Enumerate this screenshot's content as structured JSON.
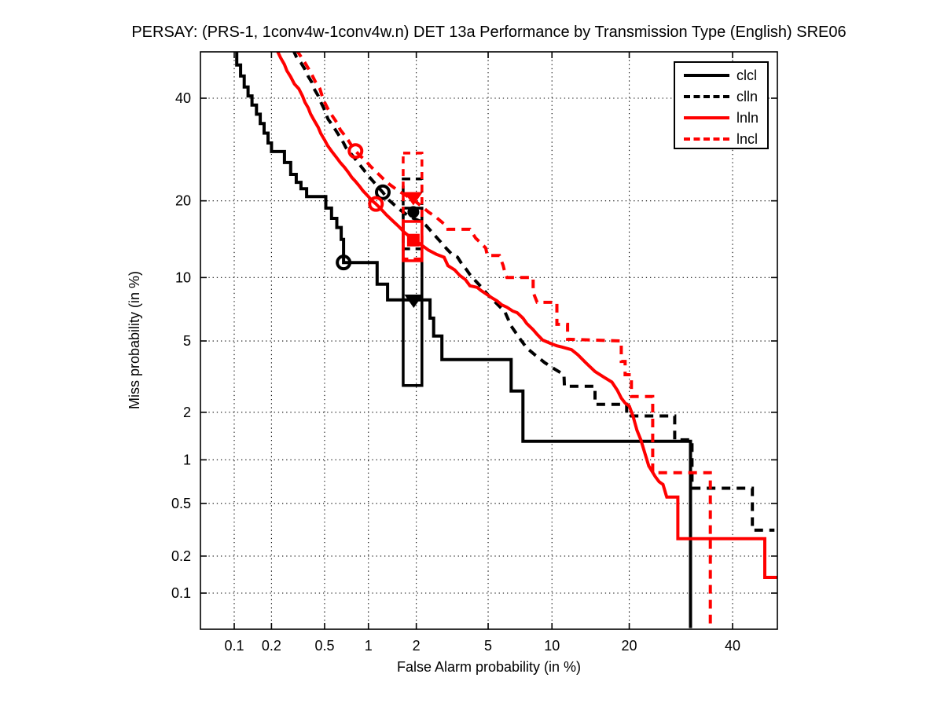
{
  "figure": {
    "background": "#ffffff",
    "accent_colors": {
      "black": "#000000",
      "red": "#ff0000"
    }
  },
  "legend": {
    "position": "top-right",
    "items": [
      {
        "label": "clcl",
        "color": "#000000",
        "style": "solid"
      },
      {
        "label": "clln",
        "color": "#000000",
        "style": "dashed"
      },
      {
        "label": "lnln",
        "color": "#ff0000",
        "style": "solid"
      },
      {
        "label": "lncl",
        "color": "#ff0000",
        "style": "dashed"
      }
    ]
  },
  "chart_data": {
    "type": "line",
    "subtype": "DET-curve (normal deviate scale on both axes)",
    "title": "PERSAY: (PRS-1, 1conv4w-1conv4w.n) DET 13a Performance by Transmission Type (English) SRE06",
    "xlabel": "False Alarm probability (in %)",
    "ylabel": "Miss probability (in %)",
    "xlim": [
      0.05,
      50
    ],
    "ylim": [
      0.05,
      50
    ],
    "x_tick_labels": [
      "0.1",
      "0.2",
      "0.5",
      "1",
      "2",
      "5",
      "10",
      "20",
      "40"
    ],
    "y_tick_labels": [
      "0.1",
      "0.2",
      "0.5",
      "1",
      "2",
      "5",
      "10",
      "20",
      "40"
    ],
    "x_ticks": [
      0.1,
      0.2,
      0.5,
      1,
      2,
      5,
      10,
      20,
      40
    ],
    "y_ticks": [
      0.1,
      0.2,
      0.5,
      1,
      2,
      5,
      10,
      20,
      40
    ],
    "grid": true,
    "series": [
      {
        "name": "clcl",
        "color": "#000000",
        "style": "solid",
        "min_dcf_point": [
          0.68,
          11.6
        ],
        "act_dcf_point": [
          1.93,
          7.85
        ],
        "act_marker": "triangle-down",
        "box": {
          "fa": [
            1.665,
            2.16
          ],
          "miss": [
            2.87,
            18.85
          ],
          "style": "solid"
        },
        "points": [
          [
            0.105,
            51
          ],
          [
            0.105,
            47.5
          ],
          [
            0.113,
            47.5
          ],
          [
            0.113,
            45
          ],
          [
            0.121,
            45
          ],
          [
            0.121,
            42.5
          ],
          [
            0.13,
            42.5
          ],
          [
            0.13,
            40.5
          ],
          [
            0.14,
            40.5
          ],
          [
            0.14,
            38.5
          ],
          [
            0.152,
            38.5
          ],
          [
            0.152,
            36.5
          ],
          [
            0.163,
            36.5
          ],
          [
            0.163,
            34.5
          ],
          [
            0.175,
            34.5
          ],
          [
            0.175,
            32.5
          ],
          [
            0.188,
            32.5
          ],
          [
            0.188,
            30.5
          ],
          [
            0.2,
            30.5
          ],
          [
            0.2,
            28.8
          ],
          [
            0.252,
            28.8
          ],
          [
            0.252,
            26.7
          ],
          [
            0.281,
            26.7
          ],
          [
            0.281,
            24.5
          ],
          [
            0.31,
            24.5
          ],
          [
            0.31,
            23.1
          ],
          [
            0.336,
            23.1
          ],
          [
            0.336,
            22
          ],
          [
            0.37,
            22
          ],
          [
            0.37,
            20.7
          ],
          [
            0.51,
            20.7
          ],
          [
            0.51,
            18.85
          ],
          [
            0.56,
            18.85
          ],
          [
            0.56,
            17.3
          ],
          [
            0.61,
            17.3
          ],
          [
            0.61,
            16
          ],
          [
            0.655,
            16
          ],
          [
            0.655,
            14.4
          ],
          [
            0.68,
            14.4
          ],
          [
            0.68,
            11.6
          ],
          [
            1.14,
            11.6
          ],
          [
            1.14,
            9.35
          ],
          [
            1.33,
            9.35
          ],
          [
            1.33,
            7.93
          ],
          [
            2.41,
            7.93
          ],
          [
            2.41,
            6.5
          ],
          [
            2.53,
            6.5
          ],
          [
            2.53,
            5.3
          ],
          [
            2.82,
            5.3
          ],
          [
            2.82,
            3.99
          ],
          [
            6.5,
            3.99
          ],
          [
            6.5,
            2.67
          ],
          [
            7.4,
            2.67
          ],
          [
            7.4,
            1.32
          ],
          [
            31.1,
            1.32
          ],
          [
            31.1,
            0.05
          ]
        ]
      },
      {
        "name": "clln",
        "color": "#000000",
        "style": "dashed",
        "min_dcf_point": [
          1.24,
          21.4
        ],
        "act_dcf_point": [
          1.92,
          18.25
        ],
        "act_marker": "filled-circle",
        "box": {
          "fa": [
            1.665,
            2.16
          ],
          "miss": [
            13.2,
            23.7
          ],
          "style": "dashed"
        },
        "points": [
          [
            0.293,
            51
          ],
          [
            0.31,
            49.4
          ],
          [
            0.336,
            48
          ],
          [
            0.36,
            46.5
          ],
          [
            0.38,
            44.9
          ],
          [
            0.405,
            43.5
          ],
          [
            0.42,
            42.1
          ],
          [
            0.45,
            40.5
          ],
          [
            0.47,
            39.1
          ],
          [
            0.494,
            37.8
          ],
          [
            0.51,
            36.6
          ],
          [
            0.53,
            35.4
          ],
          [
            0.57,
            34.1
          ],
          [
            0.605,
            32.9
          ],
          [
            0.645,
            31.6
          ],
          [
            0.68,
            30.5
          ],
          [
            0.705,
            29.6
          ],
          [
            0.8,
            27.7
          ],
          [
            0.88,
            26.2
          ],
          [
            0.965,
            24.8
          ],
          [
            1.04,
            23.7
          ],
          [
            1.12,
            22.7
          ],
          [
            1.24,
            21.4
          ],
          [
            1.36,
            20.1
          ],
          [
            1.49,
            19.2
          ],
          [
            1.61,
            18.5
          ],
          [
            1.76,
            17.8
          ],
          [
            1.92,
            17.3
          ],
          [
            2.11,
            16.9
          ],
          [
            2.28,
            16.3
          ],
          [
            2.43,
            15.55
          ],
          [
            2.62,
            14.7
          ],
          [
            2.82,
            13.9
          ],
          [
            3.0,
            13.2
          ],
          [
            3.21,
            12.55
          ],
          [
            3.45,
            12.2
          ],
          [
            3.66,
            11.35
          ],
          [
            3.84,
            10.85
          ],
          [
            4.02,
            10.3
          ],
          [
            4.31,
            9.65
          ],
          [
            4.6,
            9.1
          ],
          [
            4.86,
            8.6
          ],
          [
            5.1,
            8.2
          ],
          [
            5.35,
            7.85
          ],
          [
            5.7,
            7.4
          ],
          [
            6.06,
            6.98
          ],
          [
            6.5,
            5.95
          ],
          [
            7.1,
            5.2
          ],
          [
            7.7,
            4.6
          ],
          [
            8.4,
            4.23
          ],
          [
            9.3,
            3.84
          ],
          [
            10.25,
            3.55
          ],
          [
            11.25,
            3.3
          ],
          [
            11.3,
            2.84
          ],
          [
            15.0,
            2.84
          ],
          [
            15.0,
            2.23
          ],
          [
            19.6,
            2.23
          ],
          [
            19.6,
            1.9
          ],
          [
            28.0,
            1.9
          ],
          [
            28.0,
            1.35
          ],
          [
            31.4,
            1.35
          ],
          [
            31.4,
            0.64
          ],
          [
            44.4,
            0.64
          ],
          [
            44.4,
            0.317
          ],
          [
            49.4,
            0.317
          ]
        ]
      },
      {
        "name": "lnln",
        "color": "#ff0000",
        "style": "solid",
        "min_dcf_point": [
          1.12,
          19.5
        ],
        "act_dcf_point": [
          1.92,
          14.3
        ],
        "act_marker": "filled-square",
        "box": {
          "fa": [
            1.665,
            2.16
          ],
          "miss": [
            11.8,
            16.85
          ],
          "style": "solid"
        },
        "points": [
          [
            0.22,
            51
          ],
          [
            0.235,
            49.2
          ],
          [
            0.252,
            47.6
          ],
          [
            0.263,
            46.2
          ],
          [
            0.281,
            44.8
          ],
          [
            0.3,
            43.2
          ],
          [
            0.324,
            42.1
          ],
          [
            0.345,
            40.5
          ],
          [
            0.36,
            39.1
          ],
          [
            0.38,
            37.9
          ],
          [
            0.395,
            36.6
          ],
          [
            0.42,
            35.2
          ],
          [
            0.45,
            33.7
          ],
          [
            0.47,
            32.4
          ],
          [
            0.5,
            31.1
          ],
          [
            0.525,
            30.0
          ],
          [
            0.56,
            28.9
          ],
          [
            0.605,
            27.7
          ],
          [
            0.645,
            26.7
          ],
          [
            0.69,
            25.8
          ],
          [
            0.73,
            24.95
          ],
          [
            0.775,
            23.95
          ],
          [
            0.82,
            23.25
          ],
          [
            0.88,
            22.3
          ],
          [
            0.92,
            21.65
          ],
          [
            1.0,
            20.7
          ],
          [
            1.05,
            20.1
          ],
          [
            1.12,
            19.5
          ],
          [
            1.22,
            18.6
          ],
          [
            1.31,
            17.8
          ],
          [
            1.44,
            16.9
          ],
          [
            1.57,
            16.1
          ],
          [
            1.7,
            15.3
          ],
          [
            1.84,
            14.7
          ],
          [
            1.96,
            14.3
          ],
          [
            2.11,
            13.8
          ],
          [
            2.36,
            13.05
          ],
          [
            2.62,
            12.55
          ],
          [
            2.9,
            12.2
          ],
          [
            3.05,
            11.25
          ],
          [
            3.32,
            10.8
          ],
          [
            3.55,
            10.2
          ],
          [
            3.8,
            9.8
          ],
          [
            4.02,
            9.2
          ],
          [
            4.39,
            9.05
          ],
          [
            4.6,
            8.75
          ],
          [
            4.86,
            8.47
          ],
          [
            5.2,
            8.13
          ],
          [
            5.54,
            7.85
          ],
          [
            5.85,
            7.53
          ],
          [
            6.2,
            7.33
          ],
          [
            6.62,
            7.03
          ],
          [
            6.95,
            6.9
          ],
          [
            7.4,
            6.5
          ],
          [
            7.7,
            6.12
          ],
          [
            8.25,
            5.7
          ],
          [
            8.6,
            5.4
          ],
          [
            9.1,
            5.05
          ],
          [
            9.85,
            4.86
          ],
          [
            10.5,
            4.72
          ],
          [
            11.05,
            4.65
          ],
          [
            12.1,
            4.5
          ],
          [
            12.85,
            4.23
          ],
          [
            13.8,
            3.84
          ],
          [
            15.0,
            3.44
          ],
          [
            16.2,
            3.2
          ],
          [
            17.35,
            3.0
          ],
          [
            18.15,
            2.7
          ],
          [
            18.75,
            2.43
          ],
          [
            19.35,
            2.27
          ],
          [
            20.0,
            2.18
          ],
          [
            20.6,
            1.9
          ],
          [
            21.25,
            1.55
          ],
          [
            21.9,
            1.35
          ],
          [
            22.6,
            1.1
          ],
          [
            23.25,
            0.91
          ],
          [
            24.4,
            0.77
          ],
          [
            25.1,
            0.71
          ],
          [
            25.8,
            0.68
          ],
          [
            26.4,
            0.57
          ],
          [
            26.5,
            0.555
          ],
          [
            28.6,
            0.555
          ],
          [
            28.6,
            0.273
          ],
          [
            47.2,
            0.273
          ],
          [
            47.2,
            0.135
          ],
          [
            50,
            0.135
          ]
        ]
      },
      {
        "name": "lncl",
        "color": "#ff0000",
        "style": "dashed",
        "min_dcf_point": [
          0.82,
          28.9
        ],
        "act_dcf_point": [
          1.92,
          20.4
        ],
        "act_marker": "triangle-down",
        "box": {
          "fa": [
            1.665,
            2.16
          ],
          "miss": [
            12.0,
            28.5
          ],
          "style": "dashed"
        },
        "points": [
          [
            0.31,
            51
          ],
          [
            0.336,
            49.4
          ],
          [
            0.36,
            48
          ],
          [
            0.385,
            46.5
          ],
          [
            0.41,
            44.9
          ],
          [
            0.432,
            43.5
          ],
          [
            0.463,
            42.1
          ],
          [
            0.48,
            40.5
          ],
          [
            0.5,
            39.1
          ],
          [
            0.525,
            37.8
          ],
          [
            0.545,
            36.9
          ],
          [
            0.58,
            35.7
          ],
          [
            0.62,
            34.4
          ],
          [
            0.645,
            33.2
          ],
          [
            0.69,
            32.1
          ],
          [
            0.73,
            31.1
          ],
          [
            0.77,
            30.0
          ],
          [
            0.82,
            28.9
          ],
          [
            0.88,
            28.0
          ],
          [
            0.96,
            27.0
          ],
          [
            1.04,
            25.9
          ],
          [
            1.14,
            24.8
          ],
          [
            1.25,
            23.7
          ],
          [
            1.36,
            22.8
          ],
          [
            1.49,
            22.0
          ],
          [
            1.61,
            21.4
          ],
          [
            1.7,
            21.0
          ],
          [
            1.8,
            20.6
          ],
          [
            1.92,
            20.1
          ],
          [
            2.02,
            19.7
          ],
          [
            2.16,
            19.1
          ],
          [
            2.36,
            18.25
          ],
          [
            2.62,
            17.45
          ],
          [
            2.9,
            16.5
          ],
          [
            3.05,
            16.0
          ],
          [
            3.05,
            15.75
          ],
          [
            4.02,
            15.75
          ],
          [
            4.31,
            14.55
          ],
          [
            4.6,
            13.9
          ],
          [
            4.86,
            13.3
          ],
          [
            4.95,
            12.4
          ],
          [
            5.7,
            12.4
          ],
          [
            5.95,
            11.25
          ],
          [
            6.1,
            10.3
          ],
          [
            6.2,
            10.0
          ],
          [
            8.25,
            10.0
          ],
          [
            8.25,
            8.6
          ],
          [
            8.6,
            7.73
          ],
          [
            10.5,
            7.73
          ],
          [
            10.5,
            6.06
          ],
          [
            11.65,
            6.06
          ],
          [
            11.65,
            5.1
          ],
          [
            18.75,
            5.0
          ],
          [
            18.75,
            3.9
          ],
          [
            19.35,
            3.9
          ],
          [
            19.35,
            3.3
          ],
          [
            20.35,
            3.3
          ],
          [
            20.35,
            2.48
          ],
          [
            23.95,
            2.48
          ],
          [
            23.95,
            0.82
          ],
          [
            35.2,
            0.82
          ],
          [
            35.2,
            0.052
          ]
        ]
      }
    ]
  }
}
